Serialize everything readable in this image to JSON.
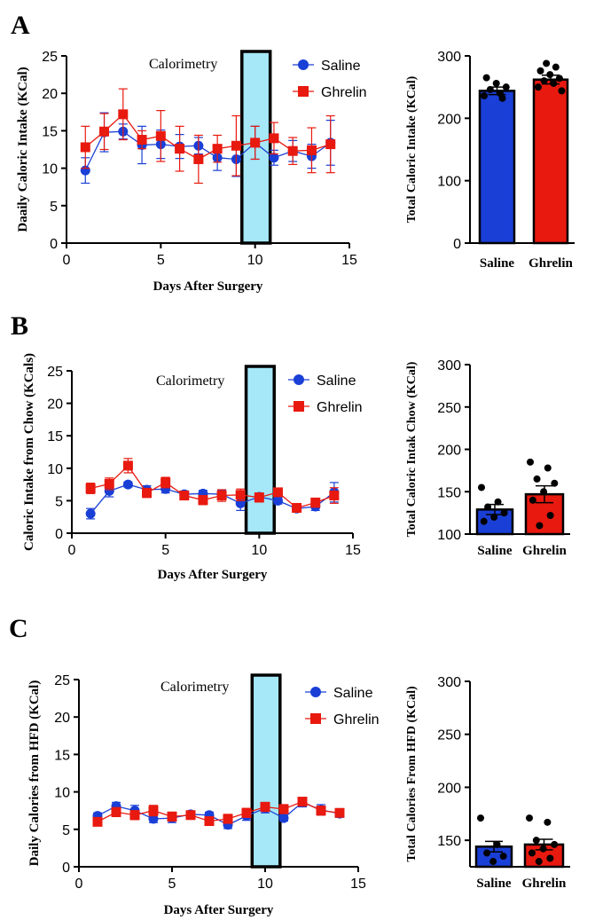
{
  "chart_data": [
    {
      "panel": "A",
      "type": "line",
      "title": "",
      "annotation": "Calorimetry",
      "xlabel": "Days After Surgery",
      "ylabel": "Daaily Caloric Intake (KCal)",
      "xlim": [
        0,
        15
      ],
      "ylim": [
        0,
        25
      ],
      "xticks": [
        0,
        5,
        10,
        15
      ],
      "yticks": [
        0,
        5,
        10,
        15,
        20,
        25
      ],
      "highlight_x": [
        9.3,
        10.8
      ],
      "legend": "top-right",
      "x": [
        1,
        2,
        3,
        4,
        5,
        6,
        7,
        8,
        9,
        10,
        11,
        12,
        13,
        14
      ],
      "series": [
        {
          "name": "Saline",
          "color": "#1a3fd6",
          "marker": "circle",
          "values": [
            9.7,
            14.8,
            14.9,
            13.1,
            13.2,
            12.9,
            13.0,
            11.4,
            11.2,
            13.4,
            11.4,
            12.3,
            11.6,
            13.4
          ],
          "errors": [
            1.7,
            2.6,
            1.0,
            2.5,
            1.9,
            1.6,
            1.1,
            1.7,
            2.3,
            2.2,
            1.0,
            1.4,
            1.6,
            3.0
          ]
        },
        {
          "name": "Ghrelin",
          "color": "#e8190f",
          "marker": "square",
          "values": [
            12.8,
            14.9,
            17.2,
            13.8,
            14.3,
            12.6,
            11.2,
            12.6,
            13.0,
            13.4,
            14.0,
            12.3,
            12.4,
            13.2
          ],
          "errors": [
            2.8,
            2.4,
            3.4,
            1.2,
            3.4,
            3.0,
            3.2,
            1.8,
            4.0,
            2.2,
            2.1,
            1.8,
            3.0,
            3.8
          ]
        }
      ]
    },
    {
      "panel": "A",
      "type": "bar",
      "ylabel": "Total Caloric Intake (KCal)",
      "categories": [
        "Saline",
        "Ghrelin"
      ],
      "colors": [
        "#1a3fd6",
        "#e8190f"
      ],
      "values": [
        244,
        262
      ],
      "errors": [
        6,
        7
      ],
      "ylim": [
        0,
        300
      ],
      "yticks": [
        0,
        100,
        200,
        300
      ],
      "points": [
        [
          236,
          240,
          246,
          250,
          256,
          265,
          232
        ],
        [
          250,
          256,
          260,
          264,
          270,
          276,
          282,
          288,
          244
        ]
      ]
    },
    {
      "panel": "B",
      "type": "line",
      "title": "",
      "annotation": "Calorimetry",
      "xlabel": "Days After Surgery",
      "ylabel": "Caloric Intake from Chow (KCals)",
      "xlim": [
        0,
        15
      ],
      "ylim": [
        0,
        25
      ],
      "xticks": [
        0,
        5,
        10,
        15
      ],
      "yticks": [
        0,
        5,
        10,
        15,
        20,
        25
      ],
      "highlight_x": [
        9.3,
        10.8
      ],
      "legend": "top-right",
      "x": [
        1,
        2,
        3,
        4,
        5,
        6,
        7,
        8,
        9,
        10,
        11,
        12,
        13,
        14
      ],
      "series": [
        {
          "name": "Saline",
          "color": "#1a3fd6",
          "marker": "circle",
          "values": [
            3.0,
            6.5,
            7.5,
            6.7,
            6.8,
            6.0,
            6.1,
            6.0,
            4.6,
            5.6,
            5.0,
            3.8,
            4.1,
            6.3
          ],
          "errors": [
            0.8,
            0.9,
            0.4,
            0.6,
            0.6,
            0.5,
            0.5,
            0.6,
            1.1,
            0.6,
            0.5,
            0.5,
            0.6,
            1.5
          ]
        },
        {
          "name": "Ghrelin",
          "color": "#e8190f",
          "marker": "square",
          "values": [
            6.9,
            7.6,
            10.4,
            6.2,
            7.8,
            5.8,
            5.1,
            5.8,
            5.9,
            5.5,
            6.3,
            3.9,
            4.7,
            5.8
          ],
          "errors": [
            0.8,
            0.9,
            1.1,
            0.7,
            0.8,
            0.6,
            0.7,
            0.9,
            0.9,
            0.7,
            0.6,
            0.5,
            0.7,
            1.2
          ]
        }
      ]
    },
    {
      "panel": "B",
      "type": "bar",
      "ylabel": "Total Caloric Intak Chow (KCal)",
      "categories": [
        "Saline",
        "Ghrelin"
      ],
      "colors": [
        "#1a3fd6",
        "#e8190f"
      ],
      "values": [
        129,
        147
      ],
      "errors": [
        6,
        10
      ],
      "ylim": [
        100,
        300
      ],
      "yticks": [
        100,
        150,
        200,
        250,
        300
      ],
      "points": [
        [
          155,
          138,
          132,
          125,
          120,
          115
        ],
        [
          185,
          178,
          165,
          160,
          150,
          140,
          122,
          110
        ]
      ]
    },
    {
      "panel": "C",
      "type": "line",
      "title": "",
      "annotation": "Calorimetry",
      "xlabel": "Days After Surgery",
      "ylabel": "Daily Calories from HFD (KCal)",
      "xlim": [
        0,
        15
      ],
      "ylim": [
        0,
        25
      ],
      "xticks": [
        0,
        5,
        10,
        15
      ],
      "yticks": [
        0,
        5,
        10,
        15,
        20,
        25
      ],
      "highlight_x": [
        9.3,
        10.8
      ],
      "legend": "top-right",
      "x": [
        1,
        2,
        3,
        4,
        5,
        6,
        7,
        8,
        9,
        10,
        11,
        12,
        13,
        14
      ],
      "series": [
        {
          "name": "Saline",
          "color": "#1a3fd6",
          "marker": "circle",
          "values": [
            6.8,
            8.1,
            7.5,
            6.4,
            6.5,
            7.0,
            6.9,
            5.6,
            6.8,
            7.8,
            6.5,
            8.6,
            7.6,
            7.1
          ],
          "errors": [
            0.4,
            0.5,
            0.7,
            0.5,
            0.6,
            0.4,
            0.4,
            0.5,
            0.6,
            0.6,
            0.4,
            0.6,
            0.7,
            0.5
          ]
        },
        {
          "name": "Ghrelin",
          "color": "#e8190f",
          "marker": "square",
          "values": [
            6.0,
            7.3,
            6.9,
            7.5,
            6.7,
            6.9,
            6.1,
            6.4,
            7.2,
            8.0,
            7.7,
            8.7,
            7.5,
            7.2
          ],
          "errors": [
            0.5,
            0.6,
            0.6,
            0.7,
            0.6,
            0.5,
            0.5,
            0.6,
            0.6,
            0.6,
            0.6,
            0.5,
            0.6,
            0.5
          ]
        }
      ]
    },
    {
      "panel": "C",
      "type": "bar",
      "ylabel": "Total Calories From HFD (KCal)",
      "categories": [
        "Saline",
        "Ghrelin"
      ],
      "colors": [
        "#1a3fd6",
        "#e8190f"
      ],
      "values": [
        144,
        146
      ],
      "errors": [
        5,
        5
      ],
      "ylim": [
        125,
        300
      ],
      "yticks": [
        150,
        200,
        250,
        300
      ],
      "points": [
        [
          171,
          146,
          138,
          135,
          130
        ],
        [
          171,
          167,
          150,
          146,
          142,
          138,
          133,
          130
        ]
      ]
    }
  ]
}
